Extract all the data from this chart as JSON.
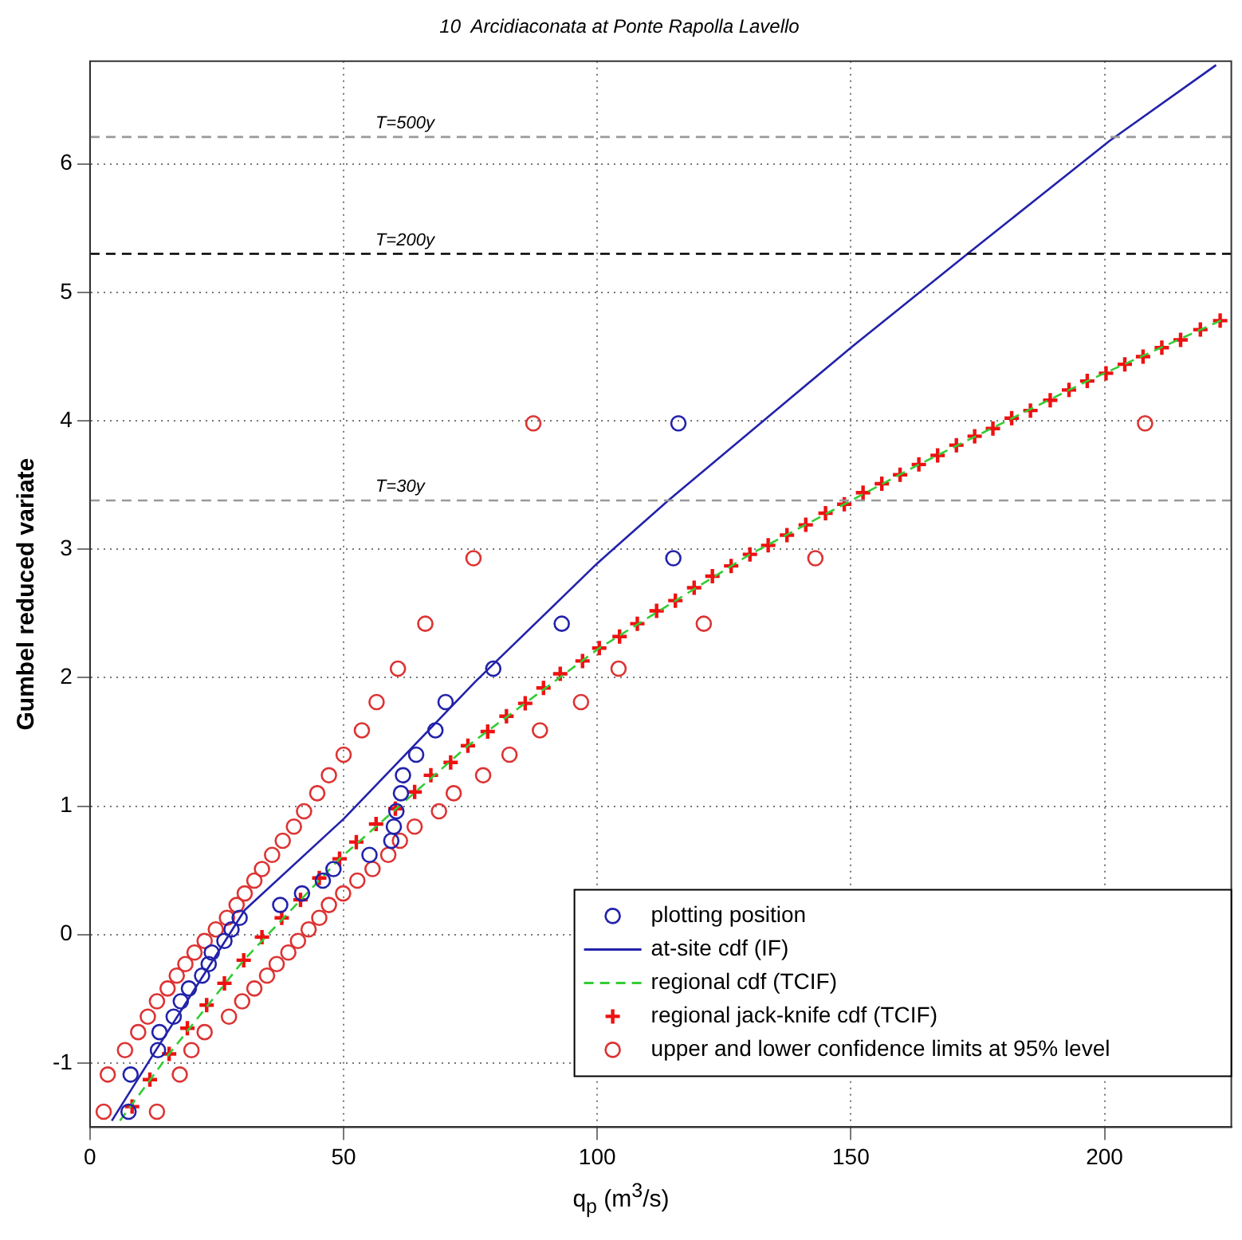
{
  "chart_data": {
    "type": "scatter",
    "title": "10  Arcidiaconata at Ponte Rapolla Lavello",
    "xlabel": "q$_{p}$ (m$^{3}$/s)",
    "ylabel": "Gumbel reduced variate",
    "xlim": [
      0,
      225
    ],
    "xticks": [
      0,
      50,
      100,
      150,
      200
    ],
    "ylim": [
      -1.5,
      6.8
    ],
    "yticks": [
      -1,
      0,
      1,
      2,
      3,
      4,
      5,
      6
    ],
    "grid": true,
    "legend": "bottom right",
    "ref_lines": [
      {
        "axis": "y",
        "value": 6.21,
        "color": "#999999",
        "line_style": "dashed"
      },
      {
        "axis": "y",
        "value": 5.3,
        "color": "#000000",
        "line_style": "dashed"
      },
      {
        "axis": "y",
        "value": 3.38,
        "color": "#999999",
        "line_style": "dashed"
      }
    ],
    "annotations": [
      {
        "text": "T=500y",
        "y": 6.21
      },
      {
        "text": "T=200y",
        "y": 5.3
      },
      {
        "text": "T=30y",
        "y": 3.38
      }
    ],
    "series": [
      {
        "name": "plotting position",
        "marker": "circle",
        "color": "#2222aa",
        "x": [
          7.6,
          8.0,
          13.4,
          13.7,
          16.5,
          17.9,
          19.5,
          22.1,
          23.4,
          24.0,
          26.5,
          27.9,
          29.5,
          37.5,
          41.8,
          45.9,
          48.0,
          55.1,
          59.4,
          59.9,
          60.4,
          61.3,
          61.7,
          64.3,
          68.1,
          70.1,
          79.5,
          93,
          115,
          116
        ],
        "values": [
          -1.38,
          -1.09,
          -0.9,
          -0.76,
          -0.64,
          -0.52,
          -0.42,
          -0.32,
          -0.23,
          -0.14,
          -0.05,
          0.04,
          0.13,
          0.23,
          0.32,
          0.42,
          0.51,
          0.62,
          0.73,
          0.84,
          0.96,
          1.1,
          1.24,
          1.4,
          1.59,
          1.81,
          2.07,
          2.42,
          2.93,
          3.98
        ]
      },
      {
        "name": "at-site cdf (IF)",
        "type": "line",
        "marker": "none",
        "line_style": "solid",
        "color": "#2222aa",
        "x": [
          4.3,
          12.7,
          30.5,
          50,
          76,
          100,
          114,
          150,
          173,
          201,
          222
        ],
        "values": [
          -1.45,
          -0.92,
          0.19,
          0.9,
          1.97,
          2.89,
          3.38,
          4.57,
          5.3,
          6.18,
          6.77
        ]
      },
      {
        "name": "regional cdf (TCIF)",
        "type": "line",
        "marker": "none",
        "line_style": "dashed",
        "color": "#33cc33",
        "x": [
          5.9,
          15.6,
          30.3,
          49.2,
          74.5,
          100.4,
          130.1,
          163.4,
          196.6,
          224
        ],
        "values": [
          -1.45,
          -0.93,
          -0.2,
          0.59,
          1.47,
          2.23,
          2.96,
          3.66,
          4.31,
          4.8
        ]
      },
      {
        "name": "regional jack-knife cdf (TCIF)",
        "marker": "cross",
        "color": "#ee1111",
        "x": [
          8.3,
          11.8,
          15.6,
          19.2,
          23,
          26.5,
          30.3,
          33.9,
          37.8,
          41.5,
          45.2,
          49.2,
          52.5,
          56.4,
          60.2,
          64,
          67.2,
          71.1,
          74.5,
          78.4,
          82.1,
          85.8,
          89.4,
          92.7,
          97.1,
          100.4,
          104.4,
          107.9,
          111.7,
          115.4,
          119.1,
          122.7,
          126.4,
          130.1,
          133.7,
          137.4,
          141.1,
          145,
          148.7,
          152.4,
          156.1,
          159.7,
          163.4,
          167.1,
          170.8,
          174.4,
          178,
          181.7,
          185.4,
          189.3,
          193,
          196.6,
          200.3,
          204,
          207.6,
          211.3,
          215,
          218.9,
          222.8
        ],
        "values": [
          -1.34,
          -1.13,
          -0.93,
          -0.73,
          -0.55,
          -0.38,
          -0.2,
          -0.02,
          0.13,
          0.27,
          0.44,
          0.59,
          0.72,
          0.86,
          0.98,
          1.11,
          1.24,
          1.34,
          1.47,
          1.58,
          1.7,
          1.8,
          1.92,
          2.03,
          2.13,
          2.23,
          2.32,
          2.42,
          2.52,
          2.6,
          2.7,
          2.79,
          2.87,
          2.96,
          3.03,
          3.11,
          3.19,
          3.28,
          3.35,
          3.44,
          3.51,
          3.58,
          3.66,
          3.73,
          3.81,
          3.88,
          3.94,
          4.02,
          4.08,
          4.16,
          4.24,
          4.31,
          4.37,
          4.44,
          4.5,
          4.57,
          4.63,
          4.71,
          4.78
        ]
      },
      {
        "name": "upper and lower confidence limits at 95% level",
        "marker": "circle",
        "color": "#dd3333",
        "x": [
          2.7,
          3.5,
          6.9,
          9.5,
          11.4,
          13.2,
          15.3,
          17.1,
          18.8,
          20.6,
          22.6,
          24.8,
          27.0,
          28.9,
          30.5,
          32.4,
          33.9,
          35.9,
          38,
          40.2,
          42.2,
          44.8,
          47.1,
          50,
          53.6,
          56.5,
          60.7,
          66.1,
          75.6,
          87.4,
          13.2,
          17.7,
          20,
          22.6,
          27.4,
          30,
          32.4,
          34.9,
          36.8,
          39.1,
          41,
          43.1,
          45.2,
          47.1,
          49.9,
          52.7,
          55.7,
          58.8,
          61.1,
          64,
          68.8,
          71.7,
          77.5,
          82.7,
          88.7,
          96.8,
          104.2,
          121,
          143,
          208
        ],
        "values": [
          -1.38,
          -1.09,
          -0.9,
          -0.76,
          -0.64,
          -0.52,
          -0.42,
          -0.32,
          -0.23,
          -0.14,
          -0.05,
          0.04,
          0.13,
          0.23,
          0.32,
          0.42,
          0.51,
          0.62,
          0.73,
          0.84,
          0.96,
          1.1,
          1.24,
          1.4,
          1.59,
          1.81,
          2.07,
          2.42,
          2.93,
          3.98,
          -1.38,
          -1.09,
          -0.9,
          -0.76,
          -0.64,
          -0.52,
          -0.42,
          -0.32,
          -0.23,
          -0.14,
          -0.05,
          0.04,
          0.13,
          0.23,
          0.32,
          0.42,
          0.51,
          0.62,
          0.73,
          0.84,
          0.96,
          1.1,
          1.24,
          1.4,
          1.59,
          1.81,
          2.07,
          2.42,
          2.93,
          3.98
        ]
      }
    ]
  }
}
